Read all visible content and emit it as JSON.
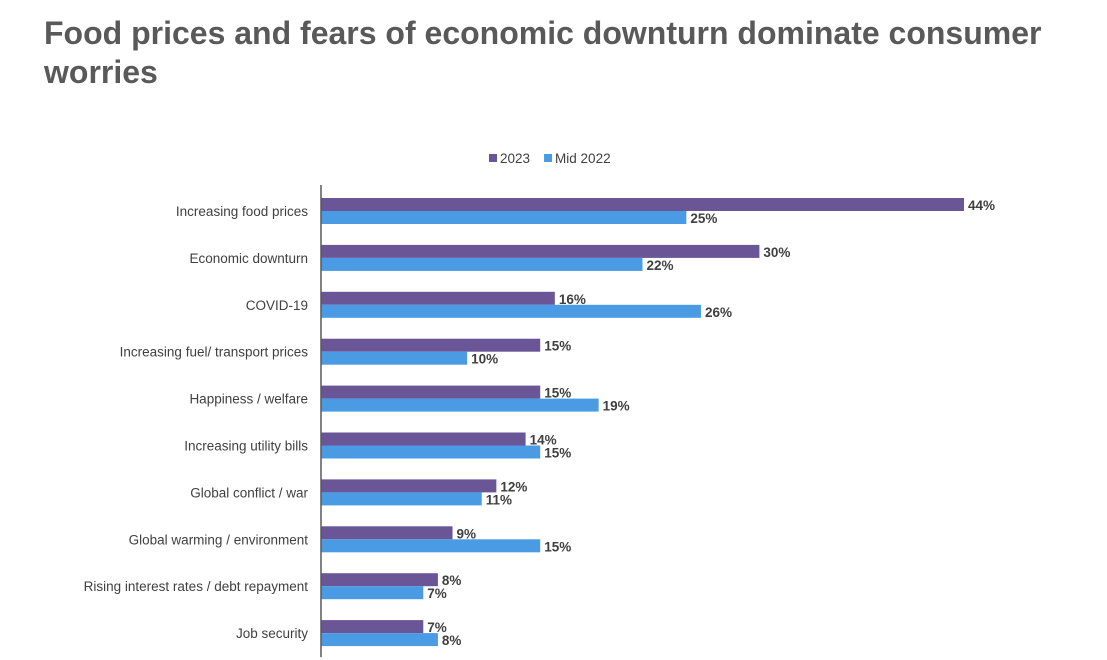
{
  "title": "Food prices and fears of economic downturn dominate consumer worries",
  "chart_data": {
    "type": "bar",
    "orientation": "horizontal",
    "categories": [
      "Increasing food prices",
      "Economic downturn",
      "COVID-19",
      "Increasing fuel/ transport prices",
      "Happiness / welfare",
      "Increasing utility bills",
      "Global conflict / war",
      "Global warming / environment",
      "Rising interest rates / debt repayment",
      "Job security"
    ],
    "series": [
      {
        "name": "2023",
        "color": "#6a5597",
        "values": [
          44,
          30,
          16,
          15,
          15,
          14,
          12,
          9,
          8,
          7
        ]
      },
      {
        "name": "Mid 2022",
        "color": "#4a9be3",
        "values": [
          25,
          22,
          26,
          10,
          19,
          15,
          11,
          15,
          7,
          8
        ]
      }
    ],
    "value_suffix": "%",
    "xlim": [
      0,
      44
    ],
    "grid": false,
    "legend_position": "top"
  }
}
